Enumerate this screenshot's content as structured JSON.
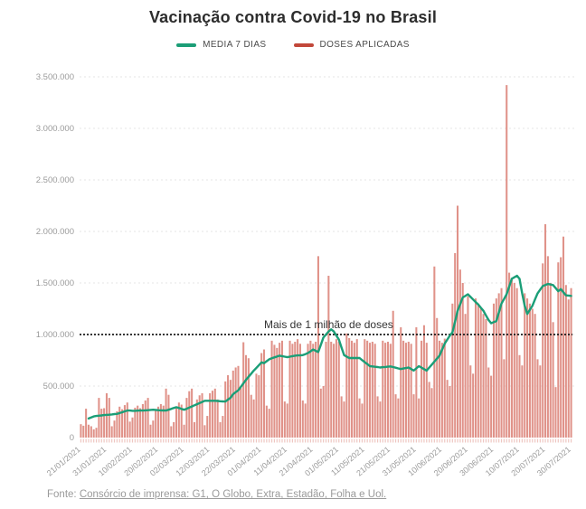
{
  "title": "Vacinação contra Covid-19 no Brasil",
  "legend": {
    "items": [
      {
        "label": "MEDIA 7 DIAS",
        "color": "#1b9e77"
      },
      {
        "label": "DOSES APLICADAS",
        "color": "#c2473a"
      }
    ]
  },
  "annotation": {
    "text": "Mais de 1 milhão de doses",
    "value": 1000000
  },
  "footer": {
    "prefix": "Fonte: ",
    "link_text": "Consórcio de imprensa: G1, O Globo, Extra, Estadão, Folha e Uol."
  },
  "colors": {
    "bar": "#e09289",
    "line": "#1b9e77",
    "grid": "#e4e4e4",
    "threshold": "#1a1a1a",
    "axis_text": "#9b9b9b",
    "annotation_text": "#333333",
    "day_tick": "#eec7c2"
  },
  "chart_data": {
    "type": "bar",
    "title": "Vacinação contra Covid-19 no Brasil",
    "xlabel": "",
    "ylabel": "",
    "ylim": [
      0,
      3500000
    ],
    "grid": "dashed-horizontal",
    "legend_position": "top-center",
    "start_date": "21/01/2021",
    "end_date": "30/07/2021",
    "x_tick_every_days": 10,
    "x_tick_labels": [
      "21/01/2021",
      "31/01/2021",
      "10/02/2021",
      "20/02/2021",
      "02/03/2021",
      "12/03/2021",
      "22/03/2021",
      "01/04/2021",
      "11/04/2021",
      "21/04/2021",
      "01/05/2021",
      "11/05/2021",
      "21/05/2021",
      "31/05/2021",
      "10/06/2021",
      "20/06/2021",
      "30/06/2021",
      "10/07/2021",
      "20/07/2021",
      "30/07/2021"
    ],
    "y_ticks": [
      0,
      500000,
      1000000,
      1500000,
      2000000,
      2500000,
      3000000,
      3500000
    ],
    "y_tick_labels": [
      "0",
      "500.000",
      "1.000.000",
      "1.500.000",
      "2.000.000",
      "2.500.000",
      "3.000.000",
      "3.500.000"
    ],
    "threshold_line": {
      "value": 1000000,
      "style": "dotted",
      "label": "Mais de 1 milhão de doses"
    },
    "series": [
      {
        "name": "DOSES APLICADAS",
        "type": "bar",
        "color": "#e09289",
        "values": [
          130000,
          115000,
          280000,
          125000,
          110000,
          80000,
          95000,
          385000,
          280000,
          285000,
          430000,
          385000,
          110000,
          165000,
          255000,
          300000,
          275000,
          315000,
          340000,
          155000,
          195000,
          290000,
          310000,
          285000,
          325000,
          360000,
          385000,
          125000,
          165000,
          270000,
          300000,
          325000,
          310000,
          475000,
          415000,
          110000,
          150000,
          300000,
          340000,
          320000,
          125000,
          385000,
          450000,
          475000,
          150000,
          370000,
          410000,
          430000,
          120000,
          210000,
          430000,
          455000,
          475000,
          370000,
          150000,
          210000,
          545000,
          605000,
          560000,
          650000,
          680000,
          695000,
          480000,
          925000,
          800000,
          770000,
          415000,
          370000,
          620000,
          605000,
          820000,
          855000,
          310000,
          280000,
          940000,
          900000,
          870000,
          920000,
          940000,
          350000,
          330000,
          940000,
          910000,
          930000,
          955000,
          910000,
          360000,
          330000,
          910000,
          940000,
          910000,
          930000,
          1760000,
          475000,
          500000,
          930000,
          1570000,
          930000,
          910000,
          955000,
          930000,
          400000,
          350000,
          1010000,
          965000,
          940000,
          920000,
          955000,
          380000,
          330000,
          955000,
          940000,
          920000,
          930000,
          910000,
          400000,
          350000,
          940000,
          920000,
          930000,
          910000,
          1230000,
          420000,
          380000,
          1070000,
          940000,
          920000,
          930000,
          910000,
          420000,
          1070000,
          380000,
          940000,
          1090000,
          920000,
          540000,
          480000,
          1660000,
          1160000,
          940000,
          920000,
          960000,
          560000,
          500000,
          1300000,
          1790000,
          2250000,
          1630000,
          1500000,
          1200000,
          1370000,
          700000,
          620000,
          1350000,
          1300000,
          1250000,
          1200000,
          1150000,
          680000,
          600000,
          1300000,
          1350000,
          1400000,
          1450000,
          760000,
          3420000,
          1600000,
          1550000,
          1500000,
          1450000,
          800000,
          700000,
          1400000,
          1350000,
          1300000,
          1250000,
          1200000,
          760000,
          700000,
          1690000,
          2070000,
          1760000,
          1500000,
          1120000,
          490000,
          1700000,
          1750000,
          1950000,
          1480000,
          1340000,
          1450000
        ]
      },
      {
        "name": "MEDIA 7 DIAS",
        "type": "line",
        "color": "#1b9e77",
        "values": [
          null,
          null,
          null,
          185000,
          195000,
          205000,
          210000,
          212000,
          215000,
          218000,
          220000,
          222000,
          225000,
          228000,
          230000,
          238000,
          246000,
          254000,
          262000,
          262000,
          260000,
          260000,
          261000,
          262000,
          262000,
          264000,
          266000,
          268000,
          270000,
          268000,
          266000,
          264000,
          263000,
          262000,
          270000,
          278000,
          287000,
          295000,
          287000,
          278000,
          270000,
          280000,
          291000,
          302000,
          313000,
          324000,
          335000,
          346000,
          357000,
          357000,
          357000,
          357000,
          357000,
          355000,
          353000,
          351000,
          350000,
          368000,
          386000,
          422000,
          440000,
          459000,
          492000,
          526000,
          560000,
          590000,
          620000,
          650000,
          676000,
          703000,
          730000,
          722000,
          741000,
          760000,
          769000,
          778000,
          786000,
          795000,
          790000,
          785000,
          780000,
          785000,
          790000,
          795000,
          797000,
          798000,
          800000,
          810000,
          820000,
          837000,
          854000,
          842000,
          830000,
          900000,
          971000,
          1000000,
          1030000,
          1050000,
          1030000,
          990000,
          950000,
          875000,
          800000,
          786000,
          772000,
          772000,
          772000,
          772000,
          772000,
          752000,
          732000,
          713000,
          693000,
          690000,
          687000,
          684000,
          680000,
          683000,
          685000,
          688000,
          690000,
          684000,
          678000,
          671000,
          665000,
          670000,
          675000,
          680000,
          665000,
          650000,
          672000,
          693000,
          679000,
          664000,
          650000,
          679000,
          708000,
          737000,
          766000,
          795000,
          854000,
          912000,
          951000,
          990000,
          1020000,
          1125000,
          1230000,
          1295000,
          1360000,
          1375000,
          1390000,
          1365000,
          1340000,
          1315000,
          1290000,
          1260000,
          1230000,
          1185000,
          1140000,
          1110000,
          1120000,
          1130000,
          1215000,
          1300000,
          1345000,
          1390000,
          1465000,
          1540000,
          1555000,
          1570000,
          1540000,
          1400000,
          1280000,
          1200000,
          1240000,
          1280000,
          1340000,
          1400000,
          1435000,
          1470000,
          1480000,
          1490000,
          1485000,
          1480000,
          1450000,
          1420000,
          1440000,
          1410000,
          1380000,
          1378000,
          1375000
        ]
      }
    ]
  }
}
